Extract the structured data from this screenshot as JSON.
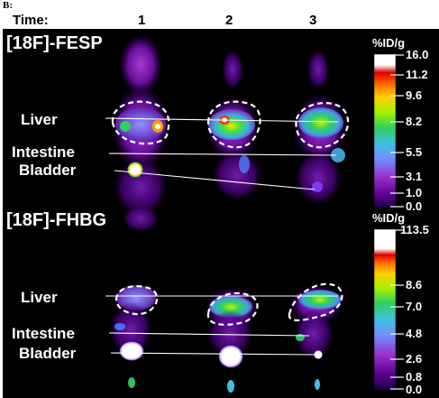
{
  "panel_label": "B:",
  "time_header": {
    "label": "Time:",
    "points": [
      "1",
      "2",
      "3"
    ]
  },
  "panels": [
    {
      "tracer": "[18F]-FESP",
      "unit": "%ID/g",
      "scale_ticks": [
        "16.0",
        "11.2",
        "9.6",
        "8.2",
        "5.5",
        "3.1",
        "1.0",
        "0.0"
      ],
      "organs": [
        "Liver",
        "Intestine",
        "Bladder"
      ]
    },
    {
      "tracer": "[18F]-FHBG",
      "unit": "%ID/g",
      "scale_ticks": [
        "113.5",
        "8.6",
        "7.0",
        "4.8",
        "2.6",
        "0.8",
        "0.0"
      ],
      "organs": [
        "Liver",
        "Intestine",
        "Bladder"
      ]
    }
  ],
  "colors": {
    "background": "#000000",
    "outline": "#ffffff",
    "colormap": [
      "#3a006e",
      "#6a00a8",
      "#a100c8",
      "#c070e0",
      "#5f8cff",
      "#40b0ff",
      "#3fd0d0",
      "#30d070",
      "#20e020",
      "#c0f000",
      "#ffd000",
      "#ff8a00",
      "#ff3000",
      "#c00000",
      "#ffffff"
    ]
  }
}
